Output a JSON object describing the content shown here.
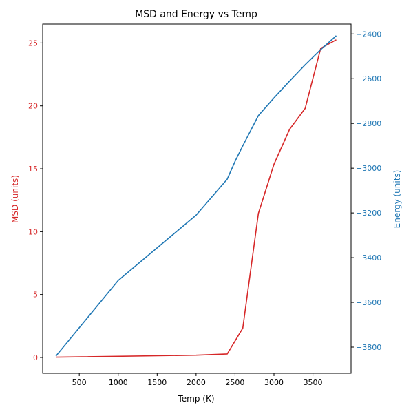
{
  "chart_data": {
    "type": "line",
    "title": "MSD and Energy vs Temp",
    "xlabel": "Temp (K)",
    "ylabel_left": "MSD (units)",
    "ylabel_right": "Energy (units)",
    "xlim": [
      30,
      3990
    ],
    "ylim_left": [
      -1.26,
      26.5
    ],
    "ylim_right": [
      -3917,
      -2356
    ],
    "x_ticks": [
      500,
      1000,
      1500,
      2000,
      2500,
      3000,
      3500
    ],
    "y_left_ticks": [
      0,
      5,
      10,
      15,
      20,
      25
    ],
    "y_right_ticks": [
      -3800,
      -3600,
      -3400,
      -3200,
      -3000,
      -2800,
      -2600,
      -2400
    ],
    "grid": false,
    "colors": {
      "msd": "#d62728",
      "energy": "#1f77b4",
      "axis": "#000000"
    },
    "series": [
      {
        "axis": "left",
        "color": "#d62728",
        "x": [
          200,
          2000,
          2400,
          2600,
          2800,
          3000,
          3200,
          3400,
          3600,
          3800
        ],
        "values": [
          0.02,
          0.18,
          0.28,
          2.33,
          11.46,
          15.36,
          18.13,
          19.8,
          24.57,
          25.25
        ]
      },
      {
        "axis": "right",
        "color": "#1f77b4",
        "x": [
          200,
          1000,
          2000,
          2400,
          2500,
          2600,
          2800,
          3000,
          3200,
          3400,
          3600,
          3800
        ],
        "values": [
          -3840,
          -3502,
          -3210,
          -3049,
          -2970,
          -2900,
          -2765,
          -2686,
          -2611,
          -2538,
          -2470,
          -2408
        ]
      }
    ]
  }
}
